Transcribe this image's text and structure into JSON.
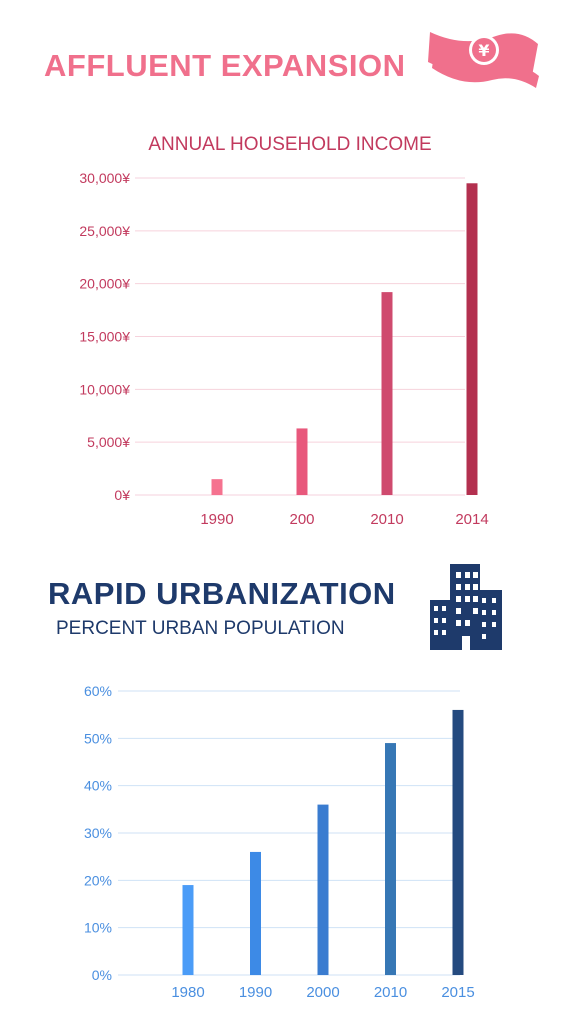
{
  "chart_data": [
    {
      "type": "bar",
      "title": "AFFLUENT EXPANSION",
      "subtitle": "ANNUAL HOUSEHOLD INCOME",
      "categories": [
        "1990",
        "200",
        "2010",
        "2014"
      ],
      "values": [
        1500,
        6300,
        19200,
        29500
      ],
      "yticks": [
        "0¥",
        "5,000¥",
        "10,000¥",
        "15,000¥",
        "20,000¥",
        "25,000¥",
        "30,000¥"
      ],
      "ylim": [
        0,
        30000
      ],
      "colors": [
        "#f5728f",
        "#e8587c",
        "#cf4a6e",
        "#b3304f"
      ],
      "grid": true
    },
    {
      "type": "bar",
      "title": "RAPID URBANIZATION",
      "subtitle": "PERCENT URBAN POPULATION",
      "categories": [
        "1980",
        "1990",
        "2000",
        "2010",
        "2015"
      ],
      "values": [
        19,
        26,
        36,
        49,
        56
      ],
      "yticks": [
        "0%",
        "10%",
        "20%",
        "30%",
        "40%",
        "50%",
        "60%"
      ],
      "ylim": [
        0,
        60
      ],
      "colors": [
        "#4b9cf7",
        "#3d8ae6",
        "#3a7cd0",
        "#3677b5",
        "#244a7f"
      ],
      "grid": true
    }
  ],
  "icons": {
    "money": "yen-banknote-icon",
    "buildings": "city-buildings-icon"
  },
  "theme": {
    "pink": "#f0708c",
    "navy": "#1e3a6b",
    "pinkText": "#c23a5e",
    "blueText": "#4a8fe0"
  }
}
